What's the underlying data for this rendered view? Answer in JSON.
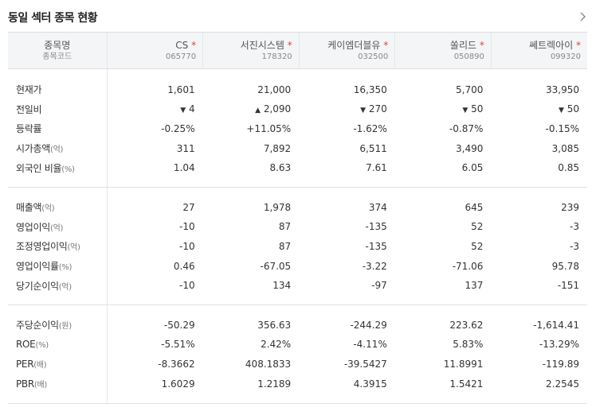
{
  "header": {
    "title": "동일 섹터 종목 현황"
  },
  "table": {
    "head_name": "종목명",
    "head_code": "종목코드",
    "companies": [
      {
        "name": "CS",
        "code": "065770"
      },
      {
        "name": "서진시스템",
        "code": "178320"
      },
      {
        "name": "케이엠더블유",
        "code": "032500"
      },
      {
        "name": "쏠리드",
        "code": "050890"
      },
      {
        "name": "쎄트렉아이",
        "code": "099320"
      }
    ],
    "group1": [
      {
        "label": "현재가",
        "unit": "",
        "values": [
          "1,601",
          "21,000",
          "16,350",
          "5,700",
          "33,950"
        ]
      },
      {
        "label": "전일비",
        "unit": "",
        "values": [
          "4",
          "2,090",
          "270",
          "50",
          "50"
        ],
        "dirs": [
          "down",
          "up",
          "down",
          "down",
          "down"
        ]
      },
      {
        "label": "등락률",
        "unit": "",
        "values": [
          "-0.25%",
          "+11.05%",
          "-1.62%",
          "-0.87%",
          "-0.15%"
        ],
        "dirs": [
          "down",
          "up",
          "down",
          "down",
          "down"
        ]
      },
      {
        "label": "시가총액",
        "unit": "(억)",
        "values": [
          "311",
          "7,892",
          "6,511",
          "3,490",
          "3,085"
        ]
      },
      {
        "label": "외국인 비율",
        "unit": "(%)",
        "values": [
          "1.04",
          "8.63",
          "7.61",
          "6.05",
          "0.85"
        ]
      }
    ],
    "group2": [
      {
        "label": "매출액",
        "unit": "(억)",
        "values": [
          "27",
          "1,978",
          "374",
          "645",
          "239"
        ]
      },
      {
        "label": "영업이익",
        "unit": "(억)",
        "values": [
          "-10",
          "87",
          "-135",
          "52",
          "-3"
        ]
      },
      {
        "label": "조정영업이익",
        "unit": "(억)",
        "values": [
          "-10",
          "87",
          "-135",
          "52",
          "-3"
        ]
      },
      {
        "label": "영업이익률",
        "unit": "(%)",
        "values": [
          "0.46",
          "-67.05",
          "-3.22",
          "-71.06",
          "95.78"
        ]
      },
      {
        "label": "당기순이익",
        "unit": "(억)",
        "values": [
          "-10",
          "134",
          "-97",
          "137",
          "-151"
        ]
      }
    ],
    "group3": [
      {
        "label": "주당순이익",
        "unit": "(원)",
        "values": [
          "-50.29",
          "356.63",
          "-244.29",
          "223.62",
          "-1,614.41"
        ]
      },
      {
        "label": "ROE",
        "unit": "(%)",
        "values": [
          "-5.51%",
          "2.42%",
          "-4.11%",
          "5.83%",
          "-13.29%"
        ]
      },
      {
        "label": "PER",
        "unit": "(배)",
        "values": [
          "-8.3662",
          "408.1833",
          "-39.5427",
          "11.8991",
          "-119.89"
        ]
      },
      {
        "label": "PBR",
        "unit": "(배)",
        "values": [
          "1.6029",
          "1.2189",
          "4.3915",
          "1.5421",
          "2.2545"
        ]
      }
    ]
  }
}
